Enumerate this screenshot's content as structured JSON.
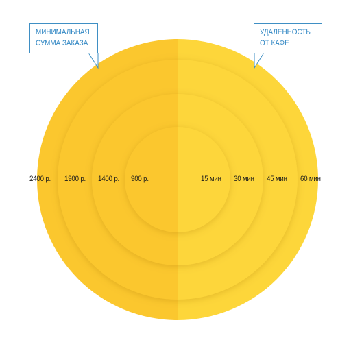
{
  "callouts": {
    "left": {
      "line1": "МИНИМАЛЬНАЯ",
      "line2": "СУММА ЗАКАЗА"
    },
    "right": {
      "line1": "УДАЛЕННОСТЬ",
      "line2": "ОТ КАФЕ"
    }
  },
  "price_labels": [
    "2400 р.",
    "1900 р.",
    "1400 р.",
    "900 р."
  ],
  "time_labels": [
    "15 мин",
    "30 мин",
    "45 мин",
    "60 мин"
  ],
  "colors": {
    "left_half": "#fbc72e",
    "right_half": "#fdd63a",
    "callout_border": "#3f8fc4",
    "callout_text": "#2f86c3"
  }
}
